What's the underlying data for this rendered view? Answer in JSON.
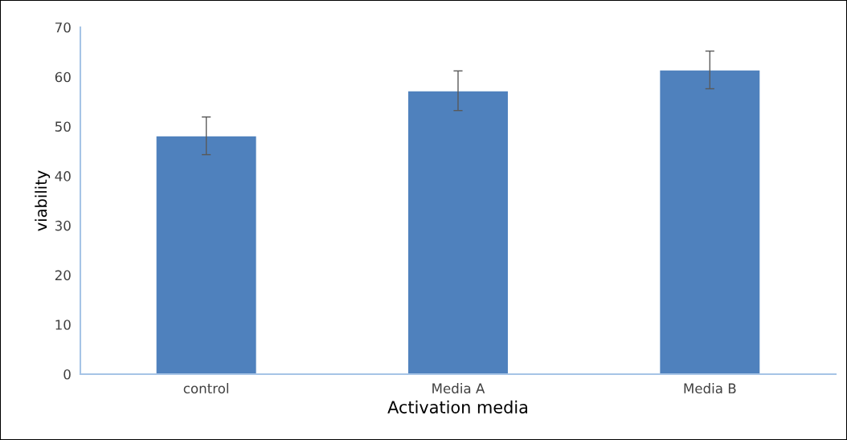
{
  "chart_data": {
    "type": "bar",
    "categories": [
      "control",
      "Media A",
      "Media B"
    ],
    "values": [
      48.1,
      57.2,
      61.4
    ],
    "errors": [
      3.8,
      4.0,
      3.8
    ],
    "color": "#4f81bd",
    "xlabel": "Activation media",
    "ylabel": "viability",
    "ylim": [
      0,
      70
    ],
    "yticks": [
      0,
      10,
      20,
      30,
      40,
      50,
      60,
      70
    ],
    "grid": false,
    "legend": false
  }
}
